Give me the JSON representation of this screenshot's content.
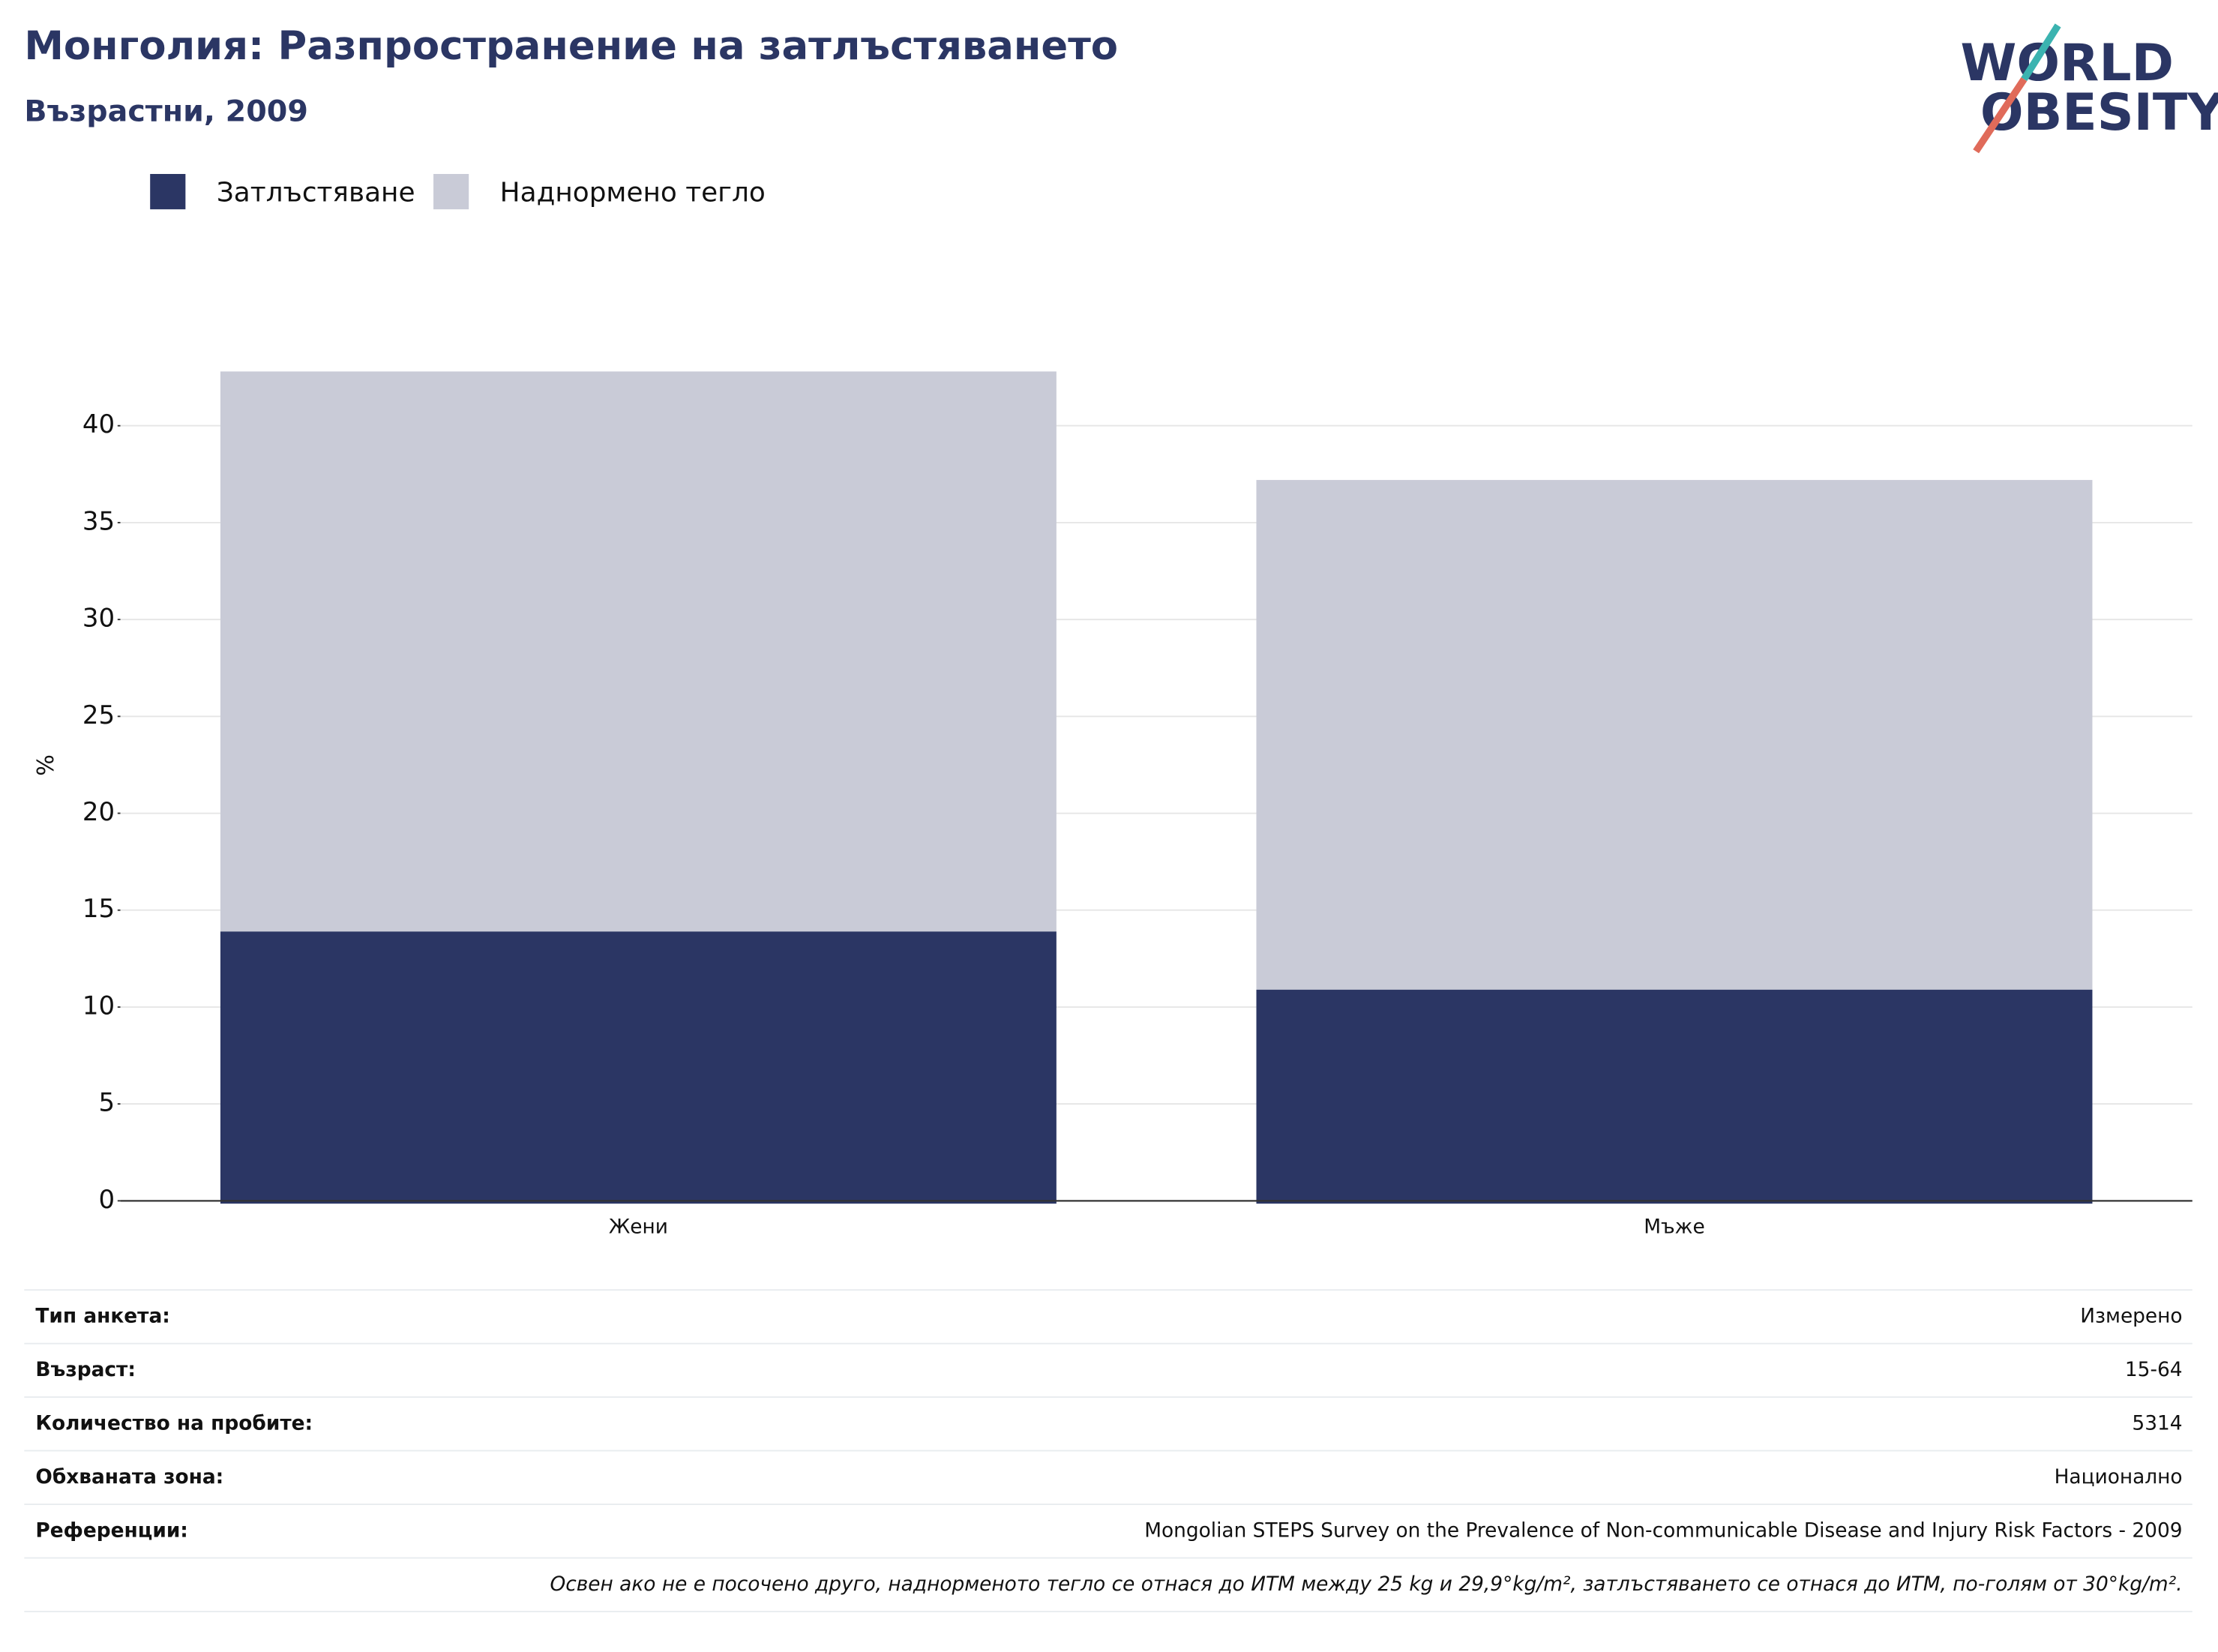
{
  "chart_data": {
    "type": "stacked_bar",
    "title": "Монголия: Разпространение на затлъстяването",
    "subtitle": "Възрастни, 2009",
    "y_label": "%",
    "categories": [
      "Жени",
      "Мъже"
    ],
    "series": [
      {
        "name": "Затлъстяване",
        "color": "#2b3664",
        "values": [
          13.9,
          10.9
        ]
      },
      {
        "name": "Наднормено тегло",
        "color": "#c9cbd7",
        "values": [
          28.9,
          26.3
        ]
      }
    ],
    "ylim": [
      0,
      45
    ],
    "yticks": [
      0,
      5,
      10,
      15,
      20,
      25,
      30,
      35,
      40
    ],
    "grid": true,
    "legend": "top-left"
  },
  "logo": {
    "line1": "WORLD",
    "line2": "OBESITY"
  },
  "info": {
    "rows": [
      [
        "Тип анкета:",
        "Измерено"
      ],
      [
        "Възраст:",
        "15-64"
      ],
      [
        "Количество на пробите:",
        "5314"
      ],
      [
        "Обхваната зона:",
        "Национално"
      ],
      [
        "Референции:",
        "Mongolian STEPS Survey on the Prevalence of Non-communicable Disease and Injury Risk Factors - 2009"
      ]
    ],
    "footnote": "Освен ако не е посочено друго, наднорменото тегло се отнася до ИТМ между 25 kg и 29,9°kg/m², затлъстяването се отнася до ИТМ, по-голям от 30°kg/m²."
  }
}
